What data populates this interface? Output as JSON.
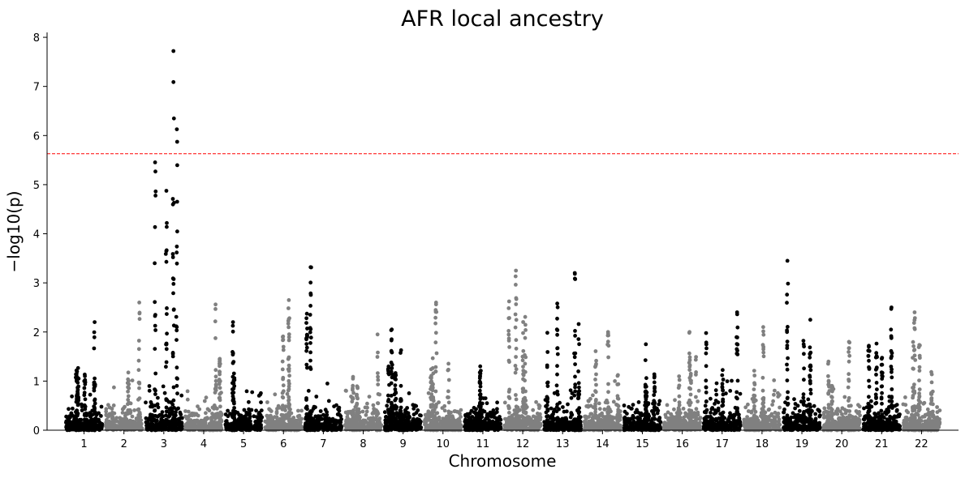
{
  "chart_data": {
    "type": "scatter",
    "title": "AFR local ancestry",
    "xlabel": "Chromosome",
    "ylabel": "−log10(p)",
    "ylim": [
      0,
      8.1
    ],
    "yticks": [
      0,
      1,
      2,
      3,
      4,
      5,
      6,
      7,
      8
    ],
    "threshold": 5.63,
    "grid": false,
    "legend": "none",
    "colors": {
      "odd": "#000000",
      "even": "#808080",
      "threshold": "#ff0000"
    },
    "chromosomes": [
      {
        "label": "1",
        "max": 2.2
      },
      {
        "label": "2",
        "max": 2.6
      },
      {
        "label": "3",
        "max": 7.72
      },
      {
        "label": "4",
        "max": 2.56
      },
      {
        "label": "5",
        "max": 2.2
      },
      {
        "label": "6",
        "max": 2.65
      },
      {
        "label": "7",
        "max": 3.32
      },
      {
        "label": "8",
        "max": 1.95
      },
      {
        "label": "9",
        "max": 2.05
      },
      {
        "label": "10",
        "max": 2.6
      },
      {
        "label": "11",
        "max": 1.3
      },
      {
        "label": "12",
        "max": 3.25
      },
      {
        "label": "13",
        "max": 3.2
      },
      {
        "label": "14",
        "max": 2.0
      },
      {
        "label": "15",
        "max": 1.75
      },
      {
        "label": "16",
        "max": 2.0
      },
      {
        "label": "17",
        "max": 2.4
      },
      {
        "label": "18",
        "max": 2.1
      },
      {
        "label": "19",
        "max": 3.45
      },
      {
        "label": "20",
        "max": 1.8
      },
      {
        "label": "21",
        "max": 2.5
      },
      {
        "label": "22",
        "max": 2.4
      }
    ]
  }
}
